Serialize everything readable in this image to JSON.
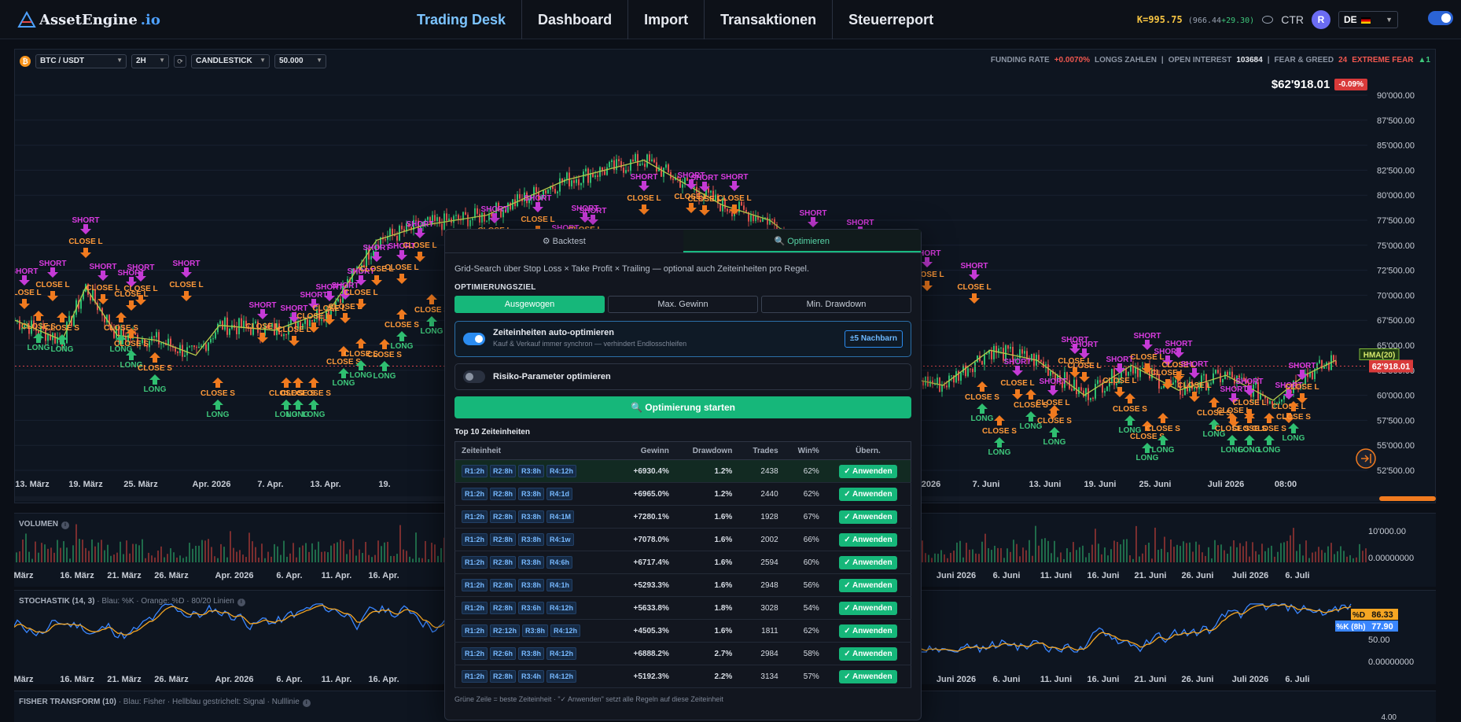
{
  "brand": {
    "name": "AssetEngine",
    "tld": ".io"
  },
  "nav": [
    "Trading Desk",
    "Dashboard",
    "Import",
    "Transaktionen",
    "Steuerreport"
  ],
  "account": {
    "k_label": "K=995.75",
    "k_sub": "(966.44",
    "k_sub_plus": "+29.30)",
    "ctr": "CTR",
    "avatar": "R",
    "lang": "DE"
  },
  "toolbar": {
    "pair": "BTC / USDT",
    "interval": "2H",
    "type": "CANDLESTICK",
    "amount": "50.000"
  },
  "metrics": {
    "funding_label": "FUNDING RATE",
    "funding_value": "+0.0070%",
    "funding_note": "LONGS ZAHLEN",
    "oi_label": "OPEN INTEREST",
    "oi_value": "103684",
    "fg_label": "FEAR & GREED",
    "fg_value": "24",
    "fg_note": "EXTREME FEAR",
    "fg_trend": "▲1"
  },
  "price": {
    "current": "$62'918.01",
    "change": "-0.09%",
    "tag": "62'918.01",
    "hma": "HMA(20)"
  },
  "chart_data": {
    "type": "line",
    "y_ticks": [
      "90'000.00",
      "87'500.00",
      "85'000.00",
      "82'500.00",
      "80'000.00",
      "77'500.00",
      "75'000.00",
      "72'500.00",
      "70'000.00",
      "67'500.00",
      "65'000.00",
      "62'500.00",
      "60'000.00",
      "57'500.00",
      "55'000.00",
      "52'500.00"
    ],
    "x_ticks": [
      "13. März",
      "19. März",
      "25. März",
      "Apr. 2026",
      "7. Apr.",
      "13. Apr.",
      "19.",
      "2026",
      "7. Juni",
      "13. Juni",
      "19. Juni",
      "25. Juni",
      "Juli 2026",
      "08:00"
    ],
    "signals": {
      "short": "SHORT",
      "close_l": "CLOSE L",
      "close_s": "CLOSE S",
      "long": "LONG"
    }
  },
  "volume": {
    "title": "VOLUMEN",
    "y_ticks": [
      "10'000.00",
      "0.00000000"
    ],
    "x_ticks": [
      "März",
      "16. März",
      "21. März",
      "26. März",
      "Apr. 2026",
      "6. Apr.",
      "11. Apr.",
      "16. Apr.",
      "Juni 2026",
      "6. Juni",
      "11. Juni",
      "16. Juni",
      "21. Juni",
      "26. Juni",
      "Juli 2026",
      "6. Juli"
    ]
  },
  "stoch": {
    "title": "STOCHASTIK (14, 3)",
    "subtitle": "· Blau: %K · Orange: %D · 80/20 Linien",
    "d_label": "%D",
    "d_value": "86.33",
    "k_label": "%K (8h)",
    "k_value": "77.90",
    "y_ticks": [
      "50.00",
      "0.00000000"
    ],
    "x_ticks": [
      "März",
      "16. März",
      "21. März",
      "26. März",
      "Apr. 2026",
      "6. Apr.",
      "11. Apr.",
      "16. Apr.",
      "Juni 2026",
      "6. Juni",
      "11. Juni",
      "16. Juni",
      "21. Juni",
      "26. Juni",
      "Juli 2026",
      "6. Juli"
    ]
  },
  "fisher": {
    "title": "FISHER TRANSFORM (10)",
    "subtitle": "· Blau: Fisher · Hellblau gestrichelt: Signal · Nulllinie",
    "y_tick": "4.00"
  },
  "optimizer": {
    "tab_backtest": "⚙ Backtest",
    "tab_optimize": "🔍 Optimieren",
    "desc": "Grid-Search über Stop Loss × Take Profit × Trailing — optional auch Zeiteinheiten pro Regel.",
    "goal_label": "OPTIMIERUNGSZIEL",
    "goals": [
      "Ausgewogen",
      "Max. Gewinn",
      "Min. Drawdown"
    ],
    "auto_title": "Zeiteinheiten auto-optimieren",
    "auto_sub": "Kauf & Verkauf immer synchron — verhindert Endlosschleifen",
    "neighbors": "±5 Nachbarn",
    "risk_title": "Risiko-Parameter optimieren",
    "start": "🔍 Optimierung starten",
    "top_title": "Top 10 Zeiteinheiten",
    "columns": [
      "Zeiteinheit",
      "Gewinn",
      "Drawdown",
      "Trades",
      "Win%",
      "Übern."
    ],
    "apply": "✓ Anwenden",
    "rows": [
      {
        "tf": [
          "R1:2h",
          "R2:8h",
          "R3:8h",
          "R4:12h"
        ],
        "gain": "+6930.4%",
        "dd": "1.2%",
        "trades": "2438",
        "win": "62%"
      },
      {
        "tf": [
          "R1:2h",
          "R2:8h",
          "R3:8h",
          "R4:1d"
        ],
        "gain": "+6965.0%",
        "dd": "1.2%",
        "trades": "2440",
        "win": "62%"
      },
      {
        "tf": [
          "R1:2h",
          "R2:8h",
          "R3:8h",
          "R4:1M"
        ],
        "gain": "+7280.1%",
        "dd": "1.6%",
        "trades": "1928",
        "win": "67%"
      },
      {
        "tf": [
          "R1:2h",
          "R2:8h",
          "R3:8h",
          "R4:1w"
        ],
        "gain": "+7078.0%",
        "dd": "1.6%",
        "trades": "2002",
        "win": "66%"
      },
      {
        "tf": [
          "R1:2h",
          "R2:8h",
          "R3:8h",
          "R4:6h"
        ],
        "gain": "+6717.4%",
        "dd": "1.6%",
        "trades": "2594",
        "win": "60%"
      },
      {
        "tf": [
          "R1:2h",
          "R2:8h",
          "R3:8h",
          "R4:1h"
        ],
        "gain": "+5293.3%",
        "dd": "1.6%",
        "trades": "2948",
        "win": "56%"
      },
      {
        "tf": [
          "R1:2h",
          "R2:8h",
          "R3:6h",
          "R4:12h"
        ],
        "gain": "+5633.8%",
        "dd": "1.8%",
        "trades": "3028",
        "win": "54%"
      },
      {
        "tf": [
          "R1:2h",
          "R2:12h",
          "R3:8h",
          "R4:12h"
        ],
        "gain": "+4505.3%",
        "dd": "1.6%",
        "trades": "1811",
        "win": "62%"
      },
      {
        "tf": [
          "R1:2h",
          "R2:6h",
          "R3:8h",
          "R4:12h"
        ],
        "gain": "+6888.2%",
        "dd": "2.7%",
        "trades": "2984",
        "win": "58%"
      },
      {
        "tf": [
          "R1:2h",
          "R2:8h",
          "R3:4h",
          "R4:12h"
        ],
        "gain": "+5192.3%",
        "dd": "2.2%",
        "trades": "3134",
        "win": "57%"
      }
    ],
    "footer": "Grüne Zeile = beste Zeiteinheit · \"✓ Anwenden\" setzt alle Regeln auf diese Zeiteinheit"
  }
}
